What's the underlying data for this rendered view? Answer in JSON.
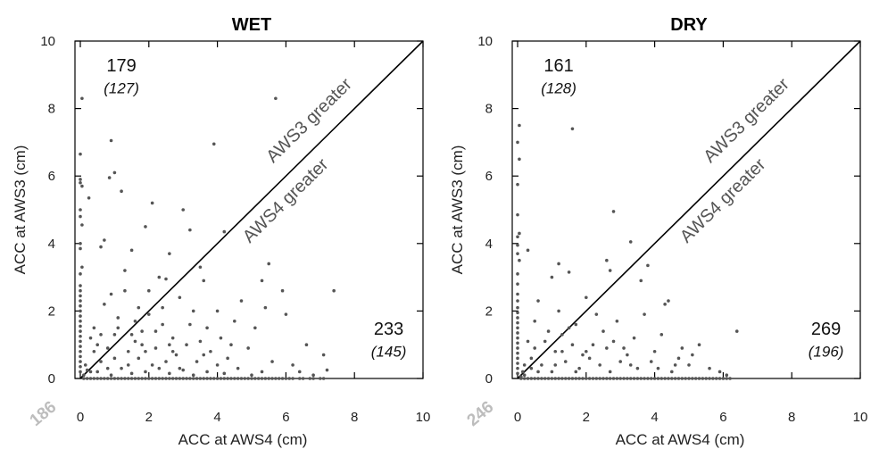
{
  "chart_data": [
    {
      "type": "scatter",
      "title": "WET",
      "xlabel": "ACC at AWS4 (cm)",
      "ylabel": "ACC at AWS3 (cm)",
      "xlim": [
        0,
        10
      ],
      "ylim": [
        0,
        10
      ],
      "xticks": [
        "0",
        "2",
        "4",
        "6",
        "8",
        "10"
      ],
      "yticks": [
        "0",
        "2",
        "4",
        "6",
        "8",
        "10"
      ],
      "reference_line": "y = x",
      "region_labels": {
        "upper": "AWS3 greater",
        "lower": "AWS4 greater"
      },
      "counts": {
        "upper": "179",
        "upper_sub": "(127)",
        "lower": "233",
        "lower_sub": "(145)",
        "zero": "186"
      },
      "point_color": "#555555",
      "points": [
        [
          0.05,
          8.3
        ],
        [
          0.0,
          6.65
        ],
        [
          0.0,
          5.9
        ],
        [
          0.0,
          5.8
        ],
        [
          0.05,
          5.7
        ],
        [
          0.0,
          5.0
        ],
        [
          0.0,
          4.8
        ],
        [
          0.05,
          4.55
        ],
        [
          0.0,
          4.0
        ],
        [
          0.0,
          3.85
        ],
        [
          0.05,
          3.3
        ],
        [
          0.0,
          3.1
        ],
        [
          0.0,
          2.75
        ],
        [
          0.0,
          2.6
        ],
        [
          0.0,
          2.45
        ],
        [
          0.0,
          2.3
        ],
        [
          0.0,
          2.15
        ],
        [
          0.0,
          2.0
        ],
        [
          0.0,
          1.85
        ],
        [
          0.0,
          1.7
        ],
        [
          0.0,
          1.55
        ],
        [
          0.0,
          1.4
        ],
        [
          0.0,
          1.25
        ],
        [
          0.0,
          1.1
        ],
        [
          0.0,
          0.95
        ],
        [
          0.0,
          0.8
        ],
        [
          0.0,
          0.65
        ],
        [
          0.0,
          0.5
        ],
        [
          0.0,
          0.35
        ],
        [
          0.0,
          0.2
        ],
        [
          0.1,
          0.1
        ],
        [
          0.2,
          0.25
        ],
        [
          0.15,
          0.4
        ],
        [
          0.3,
          0.2
        ],
        [
          0.25,
          5.35
        ],
        [
          0.6,
          3.9
        ],
        [
          0.7,
          4.1
        ],
        [
          0.9,
          7.05
        ],
        [
          0.85,
          5.95
        ],
        [
          1.0,
          6.1
        ],
        [
          1.2,
          5.55
        ],
        [
          1.3,
          3.2
        ],
        [
          1.5,
          3.8
        ],
        [
          0.9,
          2.5
        ],
        [
          1.7,
          2.1
        ],
        [
          1.9,
          4.5
        ],
        [
          2.1,
          5.2
        ],
        [
          2.3,
          3.0
        ],
        [
          2.5,
          2.95
        ],
        [
          2.6,
          3.7
        ],
        [
          3.0,
          5.0
        ],
        [
          3.2,
          4.4
        ],
        [
          3.5,
          3.3
        ],
        [
          3.6,
          2.9
        ],
        [
          3.9,
          6.95
        ],
        [
          4.2,
          4.35
        ],
        [
          4.0,
          2.0
        ],
        [
          3.7,
          1.5
        ],
        [
          0.4,
          1.5
        ],
        [
          0.5,
          1.0
        ],
        [
          0.7,
          2.2
        ],
        [
          1.0,
          1.3
        ],
        [
          1.1,
          1.8
        ],
        [
          1.4,
          0.8
        ],
        [
          1.6,
          1.1
        ],
        [
          1.8,
          1.4
        ],
        [
          2.0,
          1.9
        ],
        [
          2.2,
          0.9
        ],
        [
          2.4,
          1.6
        ],
        [
          2.7,
          1.2
        ],
        [
          2.8,
          0.7
        ],
        [
          3.1,
          1.0
        ],
        [
          3.3,
          2.0
        ],
        [
          3.4,
          0.5
        ],
        [
          2.9,
          2.4
        ],
        [
          3.8,
          0.8
        ],
        [
          4.1,
          1.2
        ],
        [
          4.3,
          0.6
        ],
        [
          4.5,
          1.7
        ],
        [
          4.7,
          2.3
        ],
        [
          4.9,
          0.9
        ],
        [
          5.1,
          1.5
        ],
        [
          5.3,
          2.9
        ],
        [
          5.5,
          3.4
        ],
        [
          5.7,
          8.3
        ],
        [
          5.9,
          2.6
        ],
        [
          6.0,
          1.9
        ],
        [
          6.2,
          0.4
        ],
        [
          6.4,
          0.2
        ],
        [
          6.8,
          0.1
        ],
        [
          7.1,
          0.7
        ],
        [
          7.4,
          2.6
        ],
        [
          7.2,
          0.25
        ],
        [
          6.6,
          1.0
        ],
        [
          5.6,
          0.5
        ],
        [
          5.4,
          2.1
        ],
        [
          1.2,
          0.3
        ],
        [
          1.5,
          0.15
        ],
        [
          1.9,
          0.2
        ],
        [
          2.3,
          0.3
        ],
        [
          2.6,
          0.15
        ],
        [
          3.0,
          0.25
        ],
        [
          3.3,
          0.1
        ],
        [
          3.7,
          0.2
        ],
        [
          4.2,
          0.15
        ],
        [
          4.6,
          0.3
        ],
        [
          5.0,
          0.1
        ],
        [
          5.3,
          0.2
        ],
        [
          0.6,
          0.5
        ],
        [
          0.8,
          0.3
        ],
        [
          1.0,
          0.6
        ],
        [
          0.4,
          0.8
        ],
        [
          0.3,
          1.2
        ],
        [
          1.7,
          0.6
        ],
        [
          2.1,
          0.4
        ],
        [
          2.5,
          0.5
        ],
        [
          2.9,
          0.3
        ],
        [
          1.3,
          2.6
        ],
        [
          1.6,
          1.7
        ],
        [
          2.0,
          2.6
        ],
        [
          2.4,
          2.1
        ],
        [
          0.6,
          1.3
        ],
        [
          0.8,
          0.9
        ],
        [
          3.5,
          1.1
        ],
        [
          4.0,
          0.4
        ],
        [
          4.4,
          1.0
        ],
        [
          1.1,
          1.5
        ],
        [
          1.5,
          1.3
        ],
        [
          1.8,
          1.0
        ],
        [
          2.2,
          1.4
        ],
        [
          2.6,
          1.0
        ],
        [
          3.2,
          1.6
        ],
        [
          3.6,
          0.7
        ],
        [
          1.9,
          0.8
        ],
        [
          2.7,
          0.8
        ],
        [
          0.5,
          0.2
        ],
        [
          0.9,
          0.1
        ],
        [
          1.4,
          0.4
        ]
      ],
      "zero_line_points_x": [
        0.1,
        0.3,
        0.5,
        0.7,
        0.9,
        1.1,
        1.3,
        1.5,
        1.7,
        1.9,
        2.1,
        2.3,
        2.5,
        2.7,
        2.9,
        3.1,
        3.3,
        3.5,
        3.7,
        3.9,
        4.1,
        4.3,
        4.5,
        4.7,
        4.9,
        5.1,
        5.3,
        5.5,
        5.7,
        5.9,
        6.1,
        6.4,
        6.7,
        7.0
      ]
    },
    {
      "type": "scatter",
      "title": "DRY",
      "xlabel": "ACC at AWS4 (cm)",
      "ylabel": "ACC at AWS3 (cm)",
      "xlim": [
        0,
        10
      ],
      "ylim": [
        0,
        10
      ],
      "xticks": [
        "0",
        "2",
        "4",
        "6",
        "8",
        "10"
      ],
      "yticks": [
        "0",
        "2",
        "4",
        "6",
        "8",
        "10"
      ],
      "reference_line": "y = x",
      "region_labels": {
        "upper": "AWS3 greater",
        "lower": "AWS4 greater"
      },
      "counts": {
        "upper": "161",
        "upper_sub": "(128)",
        "lower": "269",
        "lower_sub": "(196)",
        "zero": "246"
      },
      "point_color": "#555555",
      "points": [
        [
          0.05,
          7.5
        ],
        [
          0.0,
          7.0
        ],
        [
          0.05,
          6.5
        ],
        [
          0.0,
          5.75
        ],
        [
          0.0,
          4.85
        ],
        [
          0.05,
          4.3
        ],
        [
          0.0,
          4.2
        ],
        [
          0.0,
          3.95
        ],
        [
          0.0,
          3.7
        ],
        [
          0.05,
          3.5
        ],
        [
          0.0,
          3.1
        ],
        [
          0.0,
          2.8
        ],
        [
          0.0,
          2.5
        ],
        [
          0.0,
          2.3
        ],
        [
          0.0,
          2.1
        ],
        [
          0.0,
          1.95
        ],
        [
          0.0,
          1.8
        ],
        [
          0.0,
          1.65
        ],
        [
          0.0,
          1.5
        ],
        [
          0.0,
          1.35
        ],
        [
          0.0,
          1.2
        ],
        [
          0.0,
          1.05
        ],
        [
          0.0,
          0.9
        ],
        [
          0.0,
          0.75
        ],
        [
          0.0,
          0.6
        ],
        [
          0.0,
          0.45
        ],
        [
          0.0,
          0.3
        ],
        [
          0.0,
          0.15
        ],
        [
          0.1,
          0.05
        ],
        [
          0.15,
          0.2
        ],
        [
          0.2,
          0.1
        ],
        [
          0.3,
          3.8
        ],
        [
          0.5,
          1.7
        ],
        [
          0.6,
          2.3
        ],
        [
          1.0,
          3.0
        ],
        [
          1.2,
          3.4
        ],
        [
          1.5,
          3.15
        ],
        [
          1.6,
          7.4
        ],
        [
          2.0,
          2.4
        ],
        [
          2.6,
          3.5
        ],
        [
          2.7,
          3.2
        ],
        [
          2.8,
          4.95
        ],
        [
          3.3,
          4.05
        ],
        [
          3.6,
          2.9
        ],
        [
          3.8,
          3.35
        ],
        [
          4.3,
          2.2
        ],
        [
          4.4,
          2.3
        ],
        [
          0.8,
          1.1
        ],
        [
          1.1,
          0.8
        ],
        [
          1.3,
          1.3
        ],
        [
          1.7,
          1.6
        ],
        [
          1.9,
          0.7
        ],
        [
          2.2,
          1.0
        ],
        [
          2.5,
          1.4
        ],
        [
          2.9,
          1.7
        ],
        [
          3.1,
          0.9
        ],
        [
          3.4,
          1.2
        ],
        [
          3.7,
          1.9
        ],
        [
          4.0,
          0.8
        ],
        [
          4.2,
          1.3
        ],
        [
          4.6,
          0.4
        ],
        [
          4.8,
          0.9
        ],
        [
          5.1,
          0.7
        ],
        [
          5.3,
          1.0
        ],
        [
          5.6,
          0.3
        ],
        [
          5.9,
          0.2
        ],
        [
          6.1,
          0.1
        ],
        [
          6.4,
          1.4
        ],
        [
          0.4,
          0.6
        ],
        [
          0.7,
          0.4
        ],
        [
          1.0,
          0.2
        ],
        [
          1.4,
          0.5
        ],
        [
          1.8,
          0.3
        ],
        [
          2.1,
          0.6
        ],
        [
          2.4,
          0.4
        ],
        [
          2.7,
          0.2
        ],
        [
          3.0,
          0.5
        ],
        [
          3.5,
          0.3
        ],
        [
          3.9,
          0.5
        ],
        [
          4.5,
          0.2
        ],
        [
          5.0,
          0.4
        ],
        [
          0.5,
          0.9
        ],
        [
          0.9,
          1.4
        ],
        [
          1.2,
          2.0
        ],
        [
          1.6,
          1.0
        ],
        [
          2.3,
          1.9
        ],
        [
          2.8,
          1.1
        ],
        [
          3.2,
          0.7
        ],
        [
          0.3,
          1.1
        ],
        [
          0.6,
          0.2
        ],
        [
          1.3,
          0.8
        ],
        [
          1.5,
          1.5
        ],
        [
          2.0,
          0.8
        ],
        [
          2.6,
          0.9
        ],
        [
          0.2,
          0.4
        ],
        [
          0.4,
          0.3
        ],
        [
          1.1,
          0.4
        ],
        [
          1.7,
          0.2
        ],
        [
          3.3,
          0.4
        ],
        [
          4.1,
          0.3
        ],
        [
          4.7,
          0.6
        ]
      ],
      "zero_line_points_x": [
        0.1,
        0.3,
        0.5,
        0.7,
        0.9,
        1.1,
        1.3,
        1.5,
        1.7,
        1.9,
        2.1,
        2.3,
        2.5,
        2.7,
        2.9,
        3.1,
        3.3,
        3.5,
        3.7,
        3.9,
        4.1,
        4.3,
        4.5,
        4.7,
        4.9,
        5.1,
        5.3,
        5.5,
        5.7,
        5.9,
        6.1
      ]
    }
  ]
}
